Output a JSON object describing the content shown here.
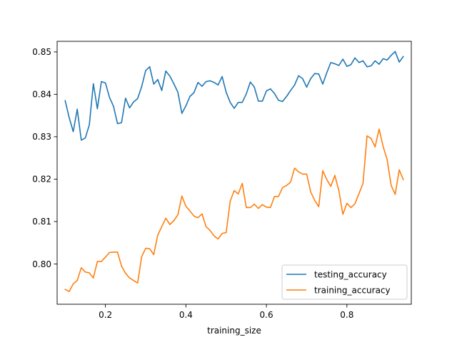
{
  "chart_data": {
    "type": "line",
    "title": "",
    "xlabel": "training_size",
    "ylabel": "",
    "xlim": [
      0.08,
      0.96
    ],
    "ylim": [
      0.7905,
      0.8525
    ],
    "xticks": [
      0.2,
      0.4,
      0.6,
      0.8
    ],
    "xtick_labels": [
      "0.2",
      "0.4",
      "0.6",
      "0.8"
    ],
    "yticks": [
      0.8,
      0.81,
      0.82,
      0.83,
      0.84,
      0.85
    ],
    "ytick_labels": [
      "0.80",
      "0.81",
      "0.82",
      "0.83",
      "0.84",
      "0.85"
    ],
    "grid": false,
    "legend_position": "lower-right",
    "x": [
      0.1,
      0.11,
      0.12,
      0.13,
      0.14,
      0.15,
      0.16,
      0.17,
      0.18,
      0.19,
      0.2,
      0.21,
      0.22,
      0.23,
      0.24,
      0.25,
      0.26,
      0.27,
      0.28,
      0.29,
      0.3,
      0.31,
      0.32,
      0.33,
      0.34,
      0.35,
      0.36,
      0.37,
      0.38,
      0.39,
      0.4,
      0.41,
      0.42,
      0.43,
      0.44,
      0.45,
      0.46,
      0.47,
      0.48,
      0.49,
      0.5,
      0.51,
      0.52,
      0.53,
      0.54,
      0.55,
      0.56,
      0.57,
      0.58,
      0.59,
      0.6,
      0.61,
      0.62,
      0.63,
      0.64,
      0.65,
      0.66,
      0.67,
      0.68,
      0.69,
      0.7,
      0.71,
      0.72,
      0.73,
      0.74,
      0.75,
      0.76,
      0.77,
      0.78,
      0.79,
      0.8,
      0.81,
      0.82,
      0.83,
      0.84,
      0.85,
      0.86,
      0.87,
      0.88,
      0.89,
      0.9,
      0.91,
      0.92,
      0.93,
      0.94
    ],
    "series": [
      {
        "name": "testing_accuracy",
        "color": "#1f77b4",
        "values": [
          0.8385,
          0.8345,
          0.8312,
          0.8365,
          0.8292,
          0.8297,
          0.8328,
          0.8425,
          0.8366,
          0.843,
          0.8427,
          0.8393,
          0.8372,
          0.8331,
          0.8333,
          0.8391,
          0.8368,
          0.8382,
          0.839,
          0.8418,
          0.8456,
          0.8465,
          0.8424,
          0.8435,
          0.8409,
          0.8455,
          0.8443,
          0.8425,
          0.8405,
          0.8355,
          0.8373,
          0.8395,
          0.8404,
          0.8428,
          0.8419,
          0.843,
          0.8432,
          0.8428,
          0.8422,
          0.8442,
          0.8405,
          0.8381,
          0.8367,
          0.8381,
          0.8381,
          0.8401,
          0.8429,
          0.8417,
          0.8384,
          0.8384,
          0.8408,
          0.8413,
          0.8402,
          0.8386,
          0.8383,
          0.8395,
          0.8409,
          0.8422,
          0.8444,
          0.8437,
          0.8417,
          0.8437,
          0.8449,
          0.8448,
          0.8424,
          0.8451,
          0.8475,
          0.8472,
          0.8468,
          0.8483,
          0.8466,
          0.847,
          0.8486,
          0.8475,
          0.8479,
          0.8465,
          0.8467,
          0.8479,
          0.8471,
          0.8484,
          0.8481,
          0.8492,
          0.8501,
          0.8476,
          0.8489
        ]
      },
      {
        "name": "training_accuracy",
        "color": "#ff7f0e",
        "values": [
          0.794,
          0.7935,
          0.7953,
          0.7961,
          0.7991,
          0.7981,
          0.7979,
          0.7967,
          0.8006,
          0.8006,
          0.8016,
          0.8027,
          0.8028,
          0.8028,
          0.7995,
          0.7978,
          0.7967,
          0.7961,
          0.7955,
          0.8017,
          0.8037,
          0.8036,
          0.8022,
          0.8068,
          0.8088,
          0.8108,
          0.8093,
          0.8102,
          0.8116,
          0.816,
          0.8136,
          0.8125,
          0.8113,
          0.8109,
          0.8118,
          0.8088,
          0.8079,
          0.8066,
          0.8059,
          0.8072,
          0.8074,
          0.8148,
          0.8173,
          0.8165,
          0.819,
          0.8133,
          0.8133,
          0.8141,
          0.8131,
          0.814,
          0.8134,
          0.8133,
          0.8159,
          0.8159,
          0.818,
          0.8185,
          0.8193,
          0.8226,
          0.8217,
          0.8212,
          0.8212,
          0.817,
          0.815,
          0.8135,
          0.822,
          0.8199,
          0.8183,
          0.8209,
          0.8173,
          0.8117,
          0.8143,
          0.8133,
          0.8142,
          0.8166,
          0.819,
          0.8302,
          0.8296,
          0.8276,
          0.8318,
          0.8277,
          0.8246,
          0.8185,
          0.8164,
          0.8222,
          0.8199
        ]
      }
    ]
  }
}
